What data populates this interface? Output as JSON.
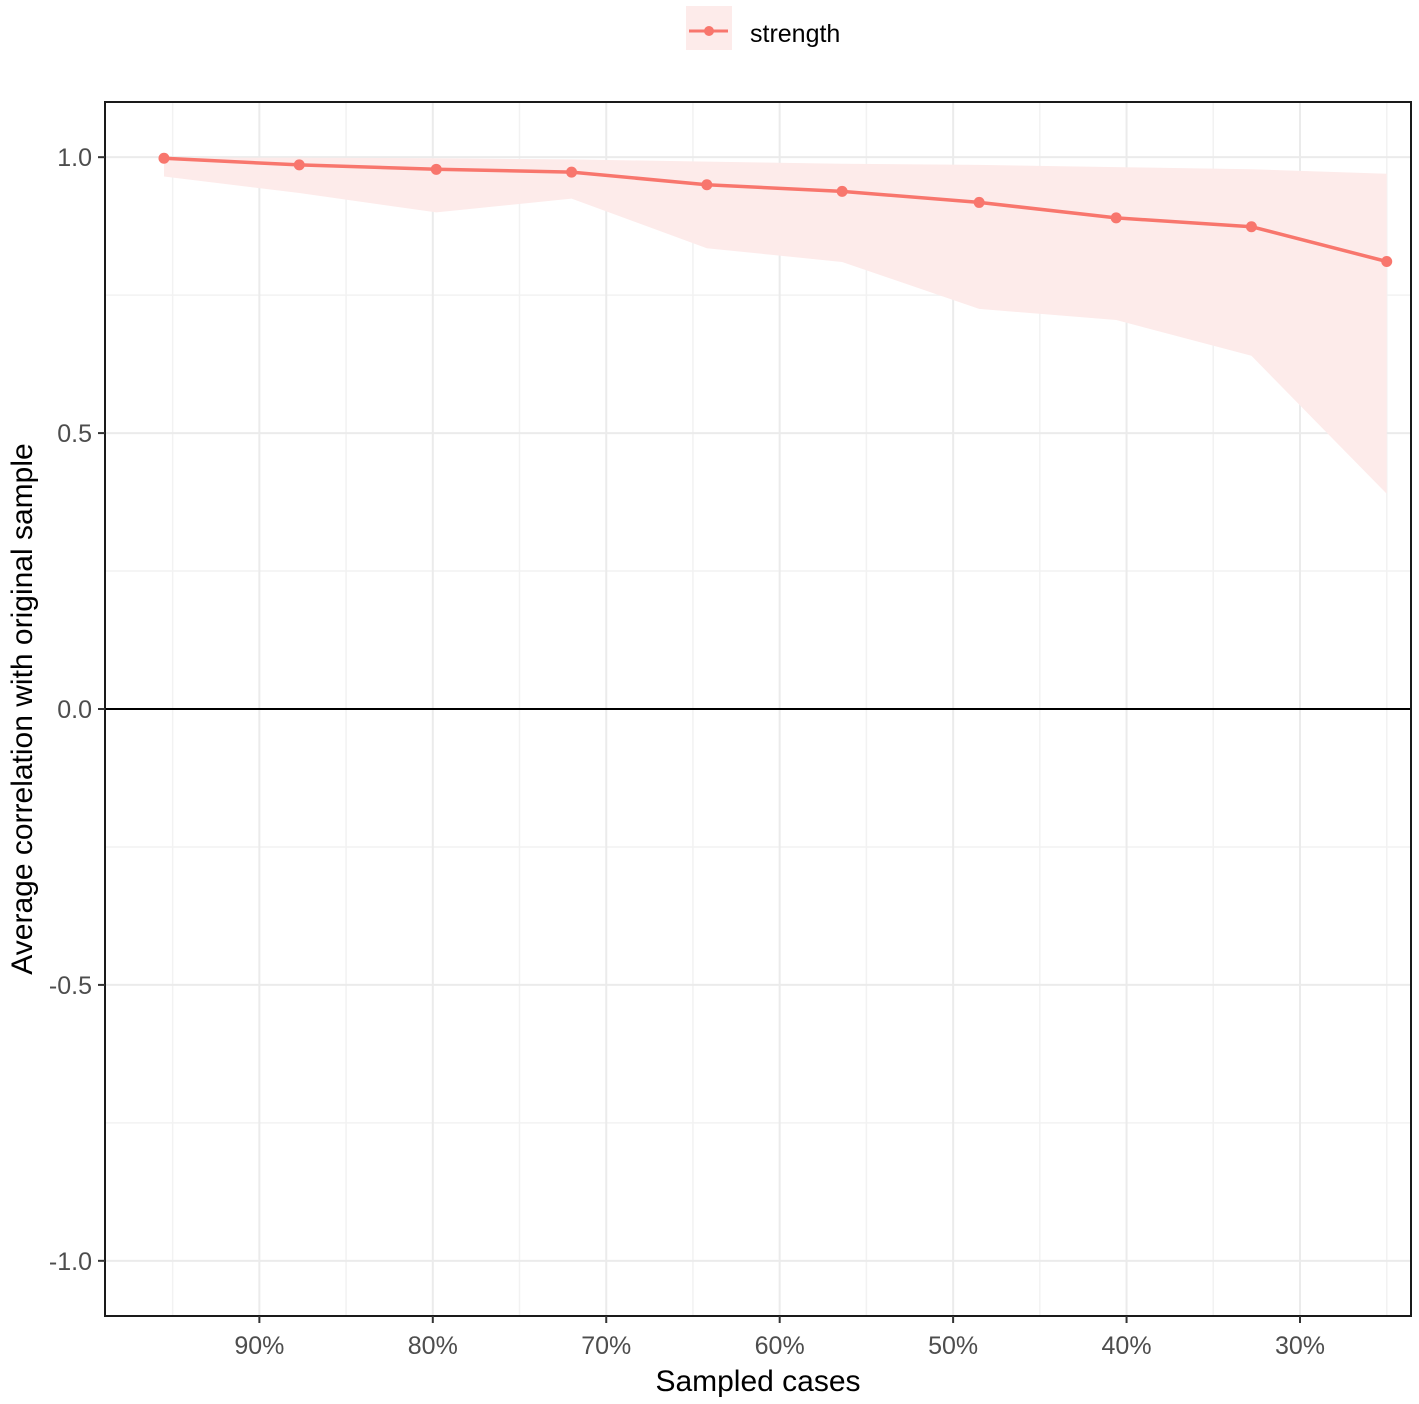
{
  "chart_data": {
    "type": "line",
    "title": "",
    "xlabel": "Sampled cases",
    "ylabel": "Average correlation with original sample",
    "x_reversed": true,
    "x_unit": "percent",
    "xlim": [
      23.6,
      98.9
    ],
    "ylim": [
      -1.1,
      1.1
    ],
    "x_ticks": [
      {
        "value": 90,
        "label": "90%"
      },
      {
        "value": 80,
        "label": "80%"
      },
      {
        "value": 70,
        "label": "70%"
      },
      {
        "value": 60,
        "label": "60%"
      },
      {
        "value": 50,
        "label": "50%"
      },
      {
        "value": 40,
        "label": "40%"
      },
      {
        "value": 30,
        "label": "30%"
      }
    ],
    "x_minor_ticks": [
      95,
      85,
      75,
      65,
      55,
      45,
      35,
      25
    ],
    "y_ticks": [
      {
        "value": 1.0,
        "label": "1.0"
      },
      {
        "value": 0.5,
        "label": "0.5"
      },
      {
        "value": 0.0,
        "label": "0.0"
      },
      {
        "value": -0.5,
        "label": "-0.5"
      },
      {
        "value": -1.0,
        "label": "-1.0"
      }
    ],
    "y_minor_ticks": [
      0.75,
      0.25,
      -0.25,
      -0.75
    ],
    "hline": 0,
    "grid": true,
    "legend": {
      "position": "top"
    },
    "series": [
      {
        "name": "strength",
        "color": "#F8766D",
        "ribbon_color": "#FDEBEA",
        "x": [
          95.5,
          87.7,
          79.8,
          72.0,
          64.2,
          56.4,
          48.5,
          40.6,
          32.8,
          25.0
        ],
        "y": [
          0.998,
          0.986,
          0.978,
          0.973,
          0.95,
          0.938,
          0.918,
          0.89,
          0.874,
          0.811
        ],
        "lower": [
          0.965,
          0.935,
          0.9,
          0.925,
          0.835,
          0.81,
          0.725,
          0.705,
          0.64,
          0.39
        ],
        "upper": [
          0.999,
          0.999,
          0.998,
          0.996,
          0.992,
          0.988,
          0.986,
          0.982,
          0.978,
          0.97
        ]
      }
    ]
  }
}
